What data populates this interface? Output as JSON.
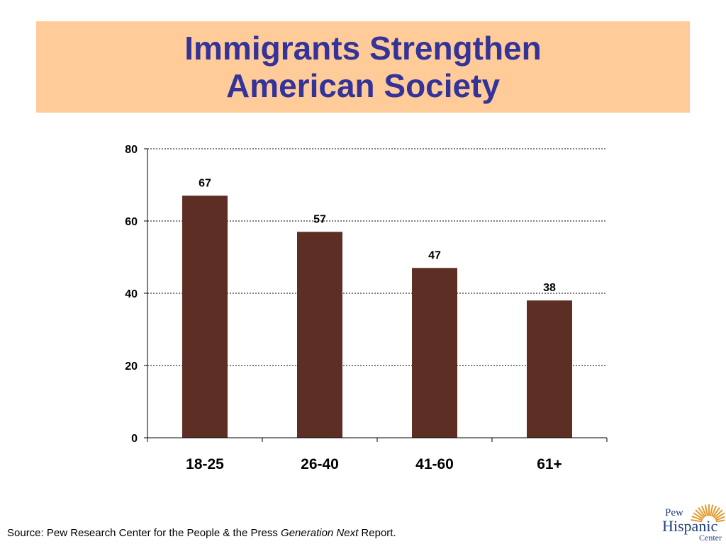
{
  "title": {
    "line1": "Immigrants Strengthen",
    "line2": "American Society"
  },
  "colors": {
    "banner": "#ffcc99",
    "title": "#333399",
    "bar": "#5c2e24",
    "logo_text": "#1f3f7a",
    "logo_sun": "#e39a2f"
  },
  "chart_data": {
    "type": "bar",
    "title": "Immigrants Strengthen American Society",
    "categories": [
      "18-25",
      "26-40",
      "41-60",
      "61+"
    ],
    "values": [
      67,
      57,
      47,
      38
    ],
    "data_labels": [
      "67",
      "57",
      "47",
      "38"
    ],
    "ylim": [
      0,
      80
    ],
    "yticks": [
      0,
      20,
      40,
      60,
      80
    ],
    "ytick_labels": [
      "0",
      "20",
      "40",
      "60",
      "80"
    ],
    "xlabel": "",
    "ylabel": "",
    "grid": true,
    "legend": "none"
  },
  "source": {
    "prefix": "Source:  Pew Research Center for the People & the Press ",
    "italic": "Generation Next",
    "suffix": " Report."
  },
  "logo": {
    "line1": "Pew",
    "line2": "Hispanic",
    "line3": "Center"
  }
}
